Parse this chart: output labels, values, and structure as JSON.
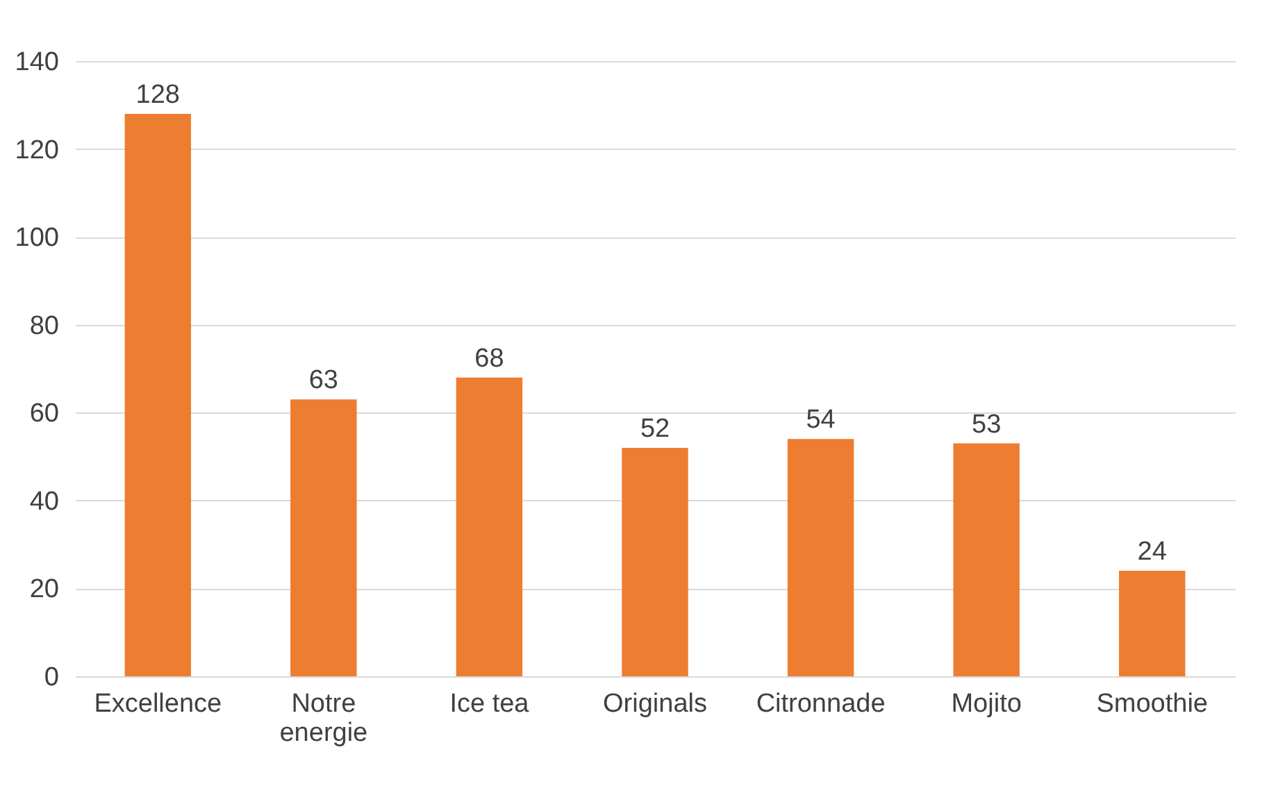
{
  "chart_data": {
    "type": "bar",
    "categories": [
      "Excellence",
      "Notre energie",
      "Ice tea",
      "Originals",
      "Citronnade",
      "Mojito",
      "Smoothie"
    ],
    "values": [
      128,
      63,
      68,
      52,
      54,
      53,
      24
    ],
    "color": "#ed7d31",
    "ylim": [
      0,
      140
    ],
    "yticks": [
      0,
      20,
      40,
      60,
      80,
      100,
      120,
      140
    ],
    "grid": "y",
    "data_labels": true
  }
}
